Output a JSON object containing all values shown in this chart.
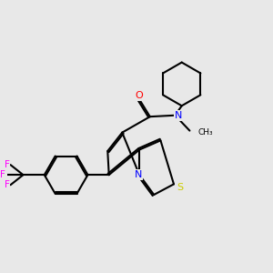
{
  "background_color": "#e8e8e8",
  "bond_color": "#000000",
  "atom_colors": {
    "N": "#0000ff",
    "O": "#ff0000",
    "S": "#cccc00",
    "F": "#ff00ff",
    "C": "#000000"
  },
  "line_width": 1.5,
  "figsize": [
    3.0,
    3.0
  ],
  "dpi": 100,
  "xlim": [
    0,
    10
  ],
  "ylim": [
    0,
    10
  ]
}
